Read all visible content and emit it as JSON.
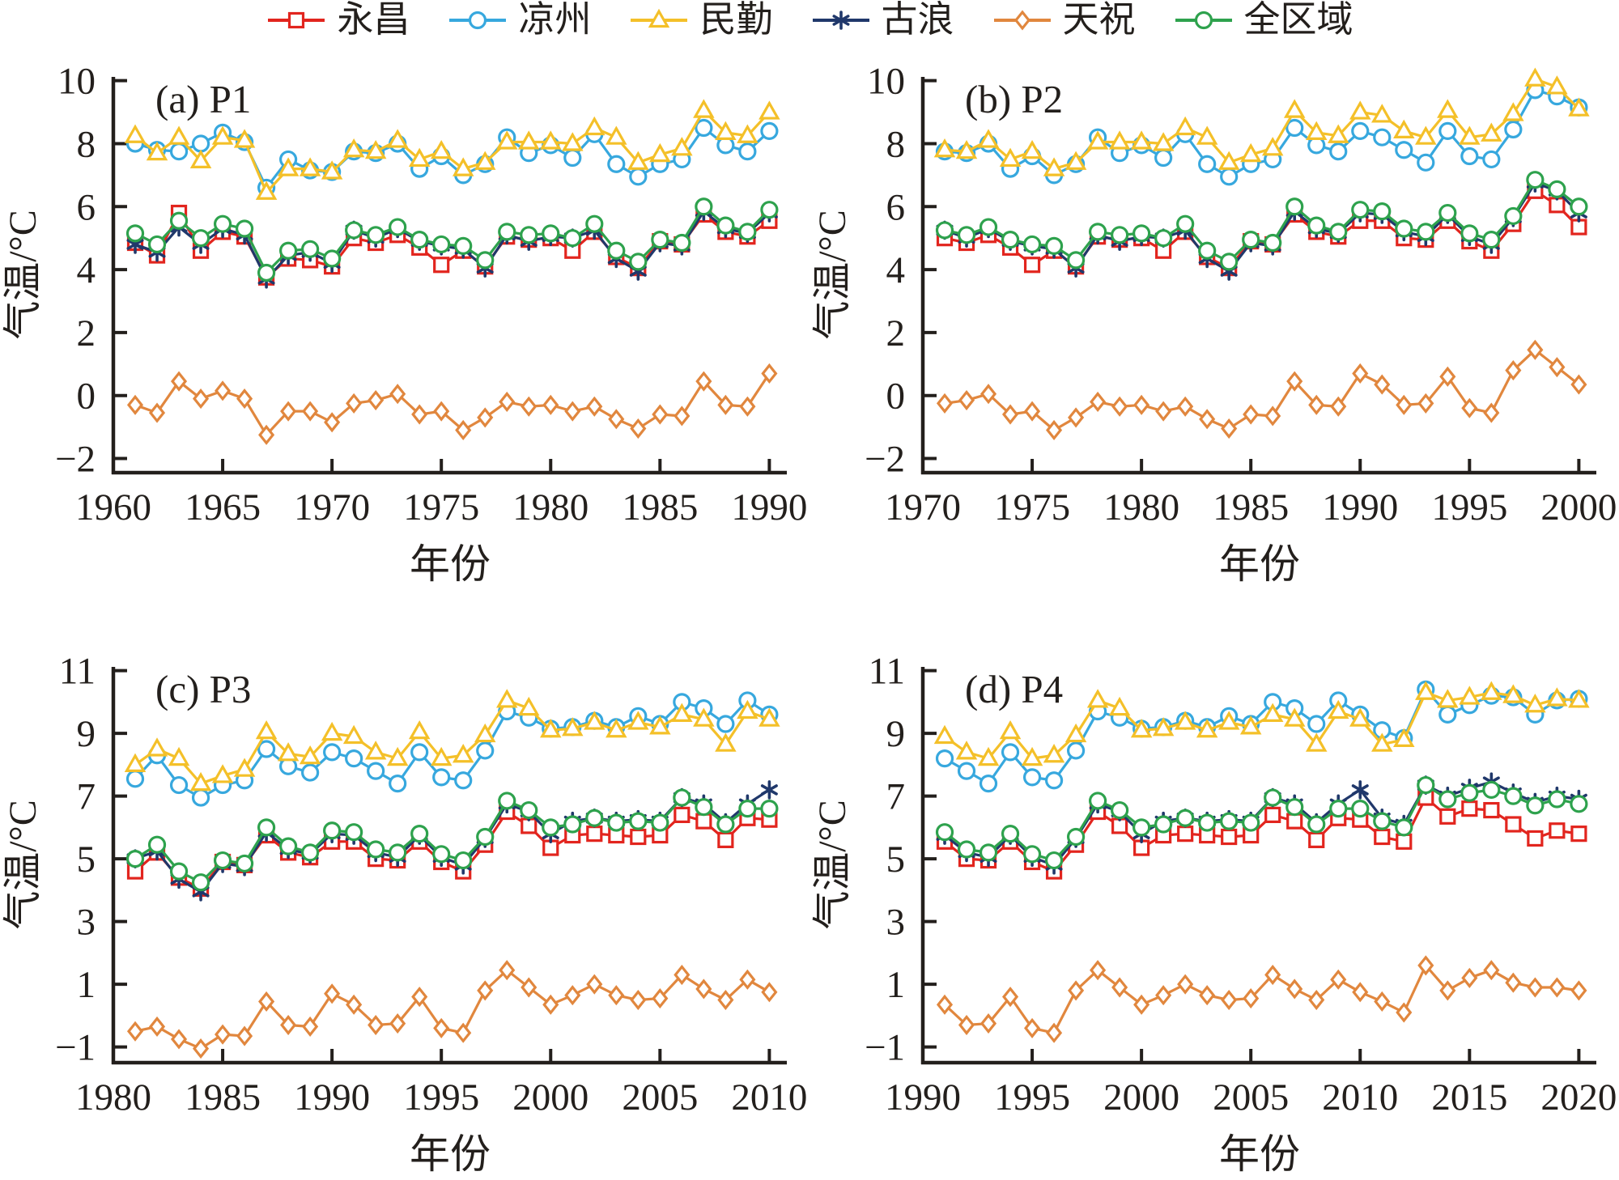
{
  "page": {
    "background": "#ffffff",
    "text_color": "#1f1a17"
  },
  "legend": {
    "items": [
      {
        "label": "永昌",
        "color": "#e2251e",
        "marker": "square"
      },
      {
        "label": "凉州",
        "color": "#37a8de",
        "marker": "circle"
      },
      {
        "label": "民勤",
        "color": "#f4c029",
        "marker": "triangle"
      },
      {
        "label": "古浪",
        "color": "#20386b",
        "marker": "asterisk"
      },
      {
        "label": "天祝",
        "color": "#e1873e",
        "marker": "diamond"
      },
      {
        "label": "全区域",
        "color": "#2ea24d",
        "marker": "circle"
      }
    ]
  },
  "chart_data": [
    {
      "type": "line",
      "id": "a",
      "label": "(a) P1",
      "xlabel": "年份",
      "ylabel": "气温/°C",
      "year_from": 1961,
      "year_to": 1990,
      "x_ticks": [
        1960,
        1965,
        1970,
        1975,
        1980,
        1985,
        1990
      ],
      "y_ticks": [
        -2,
        0,
        2,
        4,
        6,
        8,
        10
      ],
      "xlim": [
        1960,
        1990.8
      ],
      "ylim": [
        -2.45,
        10.12
      ],
      "grid": false,
      "series": [
        {
          "name": "永昌",
          "color": "#e2251e",
          "marker": "square",
          "values": [
            4.85,
            4.45,
            5.8,
            4.6,
            5.2,
            5.05,
            3.75,
            4.35,
            4.3,
            4.1,
            5.0,
            4.85,
            5.1,
            4.7,
            4.15,
            4.6,
            4.1,
            5.05,
            4.95,
            5.0,
            4.6,
            5.2,
            4.4,
            4.05,
            4.9,
            4.8,
            5.75,
            5.2,
            5.05,
            5.55
          ]
        },
        {
          "name": "凉州",
          "color": "#37a8de",
          "marker": "circle",
          "values": [
            8.0,
            7.8,
            7.75,
            8.0,
            8.35,
            8.05,
            6.6,
            7.5,
            7.15,
            7.1,
            7.75,
            7.7,
            8.0,
            7.2,
            7.6,
            7.0,
            7.35,
            8.2,
            7.7,
            7.95,
            7.55,
            8.3,
            7.35,
            6.95,
            7.35,
            7.5,
            8.5,
            7.95,
            7.75,
            8.4
          ]
        },
        {
          "name": "民勤",
          "color": "#f4c029",
          "marker": "triangle",
          "values": [
            8.25,
            7.7,
            8.2,
            7.45,
            8.2,
            8.1,
            6.45,
            7.2,
            7.2,
            7.1,
            7.8,
            7.75,
            8.1,
            7.5,
            7.75,
            7.2,
            7.4,
            8.05,
            8.05,
            8.05,
            8.0,
            8.5,
            8.2,
            7.4,
            7.65,
            7.85,
            9.05,
            8.35,
            8.25,
            9.0
          ]
        },
        {
          "name": "古浪",
          "color": "#20386b",
          "marker": "asterisk",
          "values": [
            4.8,
            4.55,
            5.35,
            4.8,
            5.3,
            5.1,
            3.7,
            4.45,
            4.55,
            4.2,
            5.25,
            5.0,
            5.3,
            4.9,
            4.75,
            4.65,
            4.05,
            5.1,
            4.9,
            5.05,
            5.0,
            5.25,
            4.35,
            3.95,
            4.85,
            4.75,
            5.85,
            5.3,
            5.15,
            5.8
          ]
        },
        {
          "name": "天祝",
          "color": "#e1873e",
          "marker": "diamond",
          "values": [
            -0.3,
            -0.55,
            0.45,
            -0.1,
            0.15,
            -0.1,
            -1.25,
            -0.5,
            -0.5,
            -0.85,
            -0.25,
            -0.15,
            0.05,
            -0.6,
            -0.5,
            -1.1,
            -0.7,
            -0.2,
            -0.35,
            -0.3,
            -0.5,
            -0.35,
            -0.75,
            -1.05,
            -0.6,
            -0.65,
            0.45,
            -0.3,
            -0.35,
            0.7
          ]
        },
        {
          "name": "全区域",
          "color": "#2ea24d",
          "marker": "circle",
          "values": [
            5.15,
            4.8,
            5.55,
            5.0,
            5.45,
            5.3,
            3.9,
            4.6,
            4.65,
            4.35,
            5.25,
            5.1,
            5.35,
            4.95,
            4.8,
            4.75,
            4.3,
            5.2,
            5.1,
            5.15,
            5.0,
            5.45,
            4.6,
            4.25,
            4.95,
            4.85,
            6.0,
            5.4,
            5.2,
            5.9
          ]
        }
      ]
    },
    {
      "type": "line",
      "id": "b",
      "label": "(b) P2",
      "xlabel": "年份",
      "ylabel": "气温/°C",
      "year_from": 1971,
      "year_to": 2000,
      "x_ticks": [
        1970,
        1975,
        1980,
        1985,
        1990,
        1995,
        2000
      ],
      "y_ticks": [
        -2,
        0,
        2,
        4,
        6,
        8,
        10
      ],
      "xlim": [
        1970,
        2000.8
      ],
      "ylim": [
        -2.45,
        10.12
      ],
      "grid": false,
      "series": [
        {
          "name": "永昌",
          "color": "#e2251e",
          "marker": "square",
          "values": [
            5.0,
            4.85,
            5.1,
            4.7,
            4.15,
            4.6,
            4.1,
            5.05,
            4.95,
            5.0,
            4.6,
            5.2,
            4.4,
            4.05,
            4.9,
            4.8,
            5.75,
            5.2,
            5.05,
            5.55,
            5.55,
            5.0,
            4.95,
            5.55,
            4.9,
            4.6,
            5.45,
            6.5,
            6.05,
            5.35
          ]
        },
        {
          "name": "凉州",
          "color": "#37a8de",
          "marker": "circle",
          "values": [
            7.75,
            7.7,
            8.0,
            7.2,
            7.6,
            7.0,
            7.35,
            8.2,
            7.7,
            7.95,
            7.55,
            8.3,
            7.35,
            6.95,
            7.35,
            7.5,
            8.5,
            7.95,
            7.75,
            8.4,
            8.2,
            7.8,
            7.4,
            8.4,
            7.6,
            7.5,
            8.45,
            9.7,
            9.5,
            9.15
          ]
        },
        {
          "name": "民勤",
          "color": "#f4c029",
          "marker": "triangle",
          "values": [
            7.8,
            7.75,
            8.1,
            7.5,
            7.75,
            7.2,
            7.4,
            8.05,
            8.05,
            8.05,
            8.0,
            8.5,
            8.2,
            7.4,
            7.65,
            7.85,
            9.05,
            8.35,
            8.25,
            9.0,
            8.9,
            8.4,
            8.2,
            9.05,
            8.2,
            8.3,
            8.95,
            10.05,
            9.8,
            9.1
          ]
        },
        {
          "name": "古浪",
          "color": "#20386b",
          "marker": "asterisk",
          "values": [
            5.25,
            5.0,
            5.3,
            4.9,
            4.75,
            4.65,
            4.05,
            5.1,
            4.9,
            5.05,
            5.0,
            5.25,
            4.35,
            3.95,
            4.85,
            4.75,
            5.85,
            5.3,
            5.15,
            5.8,
            5.75,
            5.2,
            5.05,
            5.75,
            5.05,
            4.8,
            5.65,
            6.75,
            6.5,
            5.8
          ]
        },
        {
          "name": "天祝",
          "color": "#e1873e",
          "marker": "diamond",
          "values": [
            -0.25,
            -0.15,
            0.05,
            -0.6,
            -0.5,
            -1.1,
            -0.7,
            -0.2,
            -0.35,
            -0.3,
            -0.5,
            -0.35,
            -0.75,
            -1.05,
            -0.6,
            -0.65,
            0.45,
            -0.3,
            -0.35,
            0.7,
            0.35,
            -0.3,
            -0.25,
            0.6,
            -0.4,
            -0.55,
            0.8,
            1.45,
            0.9,
            0.35
          ]
        },
        {
          "name": "全区域",
          "color": "#2ea24d",
          "marker": "circle",
          "values": [
            5.25,
            5.1,
            5.35,
            4.95,
            4.8,
            4.75,
            4.3,
            5.2,
            5.1,
            5.15,
            5.0,
            5.45,
            4.6,
            4.25,
            4.95,
            4.85,
            6.0,
            5.4,
            5.2,
            5.9,
            5.85,
            5.3,
            5.2,
            5.8,
            5.15,
            4.95,
            5.7,
            6.85,
            6.55,
            6.0
          ]
        }
      ]
    },
    {
      "type": "line",
      "id": "c",
      "label": "(c) P3",
      "xlabel": "年份",
      "ylabel": "气温/°C",
      "year_from": 1981,
      "year_to": 2010,
      "x_ticks": [
        1980,
        1985,
        1990,
        1995,
        2000,
        2005,
        2010
      ],
      "y_ticks": [
        -1,
        1,
        3,
        5,
        7,
        9,
        11
      ],
      "xlim": [
        1980,
        2010.8
      ],
      "ylim": [
        -1.5,
        11.12
      ],
      "grid": false,
      "series": [
        {
          "name": "永昌",
          "color": "#e2251e",
          "marker": "square",
          "values": [
            4.6,
            5.2,
            4.4,
            4.05,
            4.9,
            4.8,
            5.75,
            5.2,
            5.05,
            5.55,
            5.55,
            5.0,
            4.95,
            5.55,
            4.9,
            4.6,
            5.45,
            6.5,
            6.05,
            5.35,
            5.75,
            5.8,
            5.75,
            5.7,
            5.75,
            6.4,
            6.2,
            5.6,
            6.3,
            6.25
          ]
        },
        {
          "name": "凉州",
          "color": "#37a8de",
          "marker": "circle",
          "values": [
            7.55,
            8.3,
            7.35,
            6.95,
            7.35,
            7.5,
            8.5,
            7.95,
            7.75,
            8.4,
            8.2,
            7.8,
            7.4,
            8.4,
            7.6,
            7.5,
            8.45,
            9.7,
            9.5,
            9.15,
            9.2,
            9.4,
            9.2,
            9.55,
            9.3,
            10.0,
            9.8,
            9.3,
            10.05,
            9.6
          ]
        },
        {
          "name": "民勤",
          "color": "#f4c029",
          "marker": "triangle",
          "values": [
            8.0,
            8.5,
            8.2,
            7.4,
            7.65,
            7.85,
            9.05,
            8.35,
            8.25,
            9.0,
            8.9,
            8.4,
            8.2,
            9.05,
            8.2,
            8.3,
            8.95,
            10.05,
            9.8,
            9.1,
            9.15,
            9.35,
            9.1,
            9.35,
            9.2,
            9.6,
            9.45,
            8.65,
            9.7,
            9.45
          ]
        },
        {
          "name": "古浪",
          "color": "#20386b",
          "marker": "asterisk",
          "values": [
            5.0,
            5.25,
            4.35,
            3.95,
            4.85,
            4.75,
            5.85,
            5.3,
            5.15,
            5.8,
            5.75,
            5.2,
            5.05,
            5.75,
            5.05,
            4.8,
            5.65,
            6.75,
            6.5,
            5.8,
            6.2,
            6.3,
            6.2,
            6.25,
            6.2,
            6.95,
            6.75,
            6.15,
            6.75,
            7.2
          ]
        },
        {
          "name": "天祝",
          "color": "#e1873e",
          "marker": "diamond",
          "values": [
            -0.5,
            -0.35,
            -0.75,
            -1.05,
            -0.6,
            -0.65,
            0.45,
            -0.3,
            -0.35,
            0.7,
            0.35,
            -0.3,
            -0.25,
            0.6,
            -0.4,
            -0.55,
            0.8,
            1.45,
            0.9,
            0.35,
            0.65,
            1.0,
            0.65,
            0.5,
            0.55,
            1.3,
            0.85,
            0.5,
            1.15,
            0.75
          ]
        },
        {
          "name": "全区域",
          "color": "#2ea24d",
          "marker": "circle",
          "values": [
            5.0,
            5.45,
            4.6,
            4.25,
            4.95,
            4.85,
            6.0,
            5.4,
            5.2,
            5.9,
            5.85,
            5.3,
            5.2,
            5.8,
            5.15,
            4.95,
            5.7,
            6.85,
            6.55,
            6.0,
            6.1,
            6.3,
            6.15,
            6.2,
            6.15,
            6.95,
            6.65,
            6.1,
            6.6,
            6.6
          ]
        }
      ]
    },
    {
      "type": "line",
      "id": "d",
      "label": "(d) P4",
      "xlabel": "年份",
      "ylabel": "气温/°C",
      "year_from": 1991,
      "year_to": 2020,
      "x_ticks": [
        1990,
        1995,
        2000,
        2005,
        2010,
        2015,
        2020
      ],
      "y_ticks": [
        -1,
        1,
        3,
        5,
        7,
        9,
        11
      ],
      "xlim": [
        1990,
        2020.8
      ],
      "ylim": [
        -1.5,
        11.12
      ],
      "grid": false,
      "series": [
        {
          "name": "永昌",
          "color": "#e2251e",
          "marker": "square",
          "values": [
            5.55,
            5.0,
            4.95,
            5.55,
            4.9,
            4.6,
            5.45,
            6.5,
            6.05,
            5.35,
            5.75,
            5.8,
            5.75,
            5.7,
            5.75,
            6.4,
            6.2,
            5.6,
            6.3,
            6.25,
            5.7,
            5.55,
            6.95,
            6.35,
            6.6,
            6.55,
            6.1,
            5.65,
            5.9,
            5.8
          ]
        },
        {
          "name": "凉州",
          "color": "#37a8de",
          "marker": "circle",
          "values": [
            8.2,
            7.8,
            7.4,
            8.4,
            7.6,
            7.5,
            8.45,
            9.7,
            9.5,
            9.15,
            9.2,
            9.4,
            9.2,
            9.55,
            9.3,
            10.0,
            9.8,
            9.3,
            10.05,
            9.6,
            9.1,
            8.85,
            10.4,
            9.6,
            9.9,
            10.2,
            10.15,
            9.6,
            10.05,
            10.1
          ]
        },
        {
          "name": "民勤",
          "color": "#f4c029",
          "marker": "triangle",
          "values": [
            8.9,
            8.4,
            8.2,
            9.05,
            8.2,
            8.3,
            8.95,
            10.05,
            9.8,
            9.1,
            9.15,
            9.35,
            9.1,
            9.35,
            9.2,
            9.6,
            9.45,
            8.65,
            9.7,
            9.45,
            8.65,
            8.8,
            10.3,
            10.05,
            10.15,
            10.3,
            10.2,
            9.9,
            10.1,
            10.05
          ]
        },
        {
          "name": "古浪",
          "color": "#20386b",
          "marker": "asterisk",
          "values": [
            5.75,
            5.2,
            5.05,
            5.75,
            5.05,
            4.8,
            5.65,
            6.75,
            6.5,
            5.8,
            6.2,
            6.3,
            6.2,
            6.25,
            6.2,
            6.95,
            6.75,
            6.15,
            6.75,
            7.2,
            6.3,
            6.1,
            7.35,
            7.0,
            7.25,
            7.45,
            7.1,
            6.8,
            7.0,
            6.9
          ]
        },
        {
          "name": "天祝",
          "color": "#e1873e",
          "marker": "diamond",
          "values": [
            0.35,
            -0.3,
            -0.25,
            0.6,
            -0.4,
            -0.55,
            0.8,
            1.45,
            0.9,
            0.35,
            0.65,
            1.0,
            0.65,
            0.5,
            0.55,
            1.3,
            0.85,
            0.5,
            1.15,
            0.75,
            0.45,
            0.1,
            1.6,
            0.8,
            1.2,
            1.45,
            1.05,
            0.9,
            0.9,
            0.8
          ]
        },
        {
          "name": "全区域",
          "color": "#2ea24d",
          "marker": "circle",
          "values": [
            5.85,
            5.3,
            5.2,
            5.8,
            5.15,
            4.95,
            5.7,
            6.85,
            6.55,
            6.0,
            6.1,
            6.3,
            6.15,
            6.2,
            6.15,
            6.95,
            6.65,
            6.1,
            6.6,
            6.6,
            6.2,
            6.0,
            7.35,
            6.9,
            7.1,
            7.2,
            7.0,
            6.7,
            6.9,
            6.75
          ]
        }
      ]
    }
  ]
}
